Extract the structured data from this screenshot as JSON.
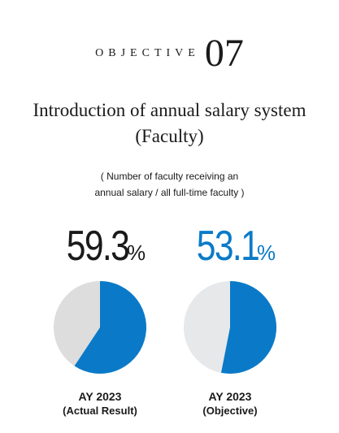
{
  "header": {
    "objective_label": "OBJECTIVE",
    "objective_number": "07",
    "title_line1": "Introduction of annual salary system",
    "title_line2": "(Faculty)",
    "subtitle_line1": "( Number of faculty receiving an",
    "subtitle_line2": "annual salary / all full-time faculty )"
  },
  "colors": {
    "accent_blue": "#0a7ac8",
    "actual_remainder": "#dddddd",
    "objective_remainder": "#e6e8ea",
    "text_dark": "#1a1a1a"
  },
  "chart_data": {
    "type": "pie",
    "charts": [
      {
        "value_label": "59.3",
        "unit": "%",
        "value": 59.3,
        "remainder": 40.7,
        "caption_line1": "AY 2023",
        "caption_line2": "(Actual Result)"
      },
      {
        "value_label": "53.1",
        "unit": "%",
        "value": 53.1,
        "remainder": 46.9,
        "caption_line1": "AY 2023",
        "caption_line2": "(Objective)"
      }
    ]
  }
}
